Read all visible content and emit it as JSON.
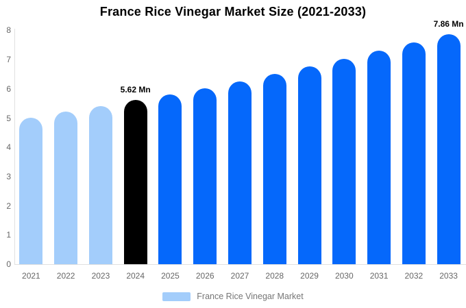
{
  "chart_data": {
    "type": "bar",
    "title": "France Rice Vinegar Market Size (2021-2033)",
    "categories": [
      "2021",
      "2022",
      "2023",
      "2024",
      "2025",
      "2026",
      "2027",
      "2028",
      "2029",
      "2030",
      "2031",
      "2032",
      "2033"
    ],
    "series": [
      {
        "name": "France Rice Vinegar Market",
        "values": [
          5.02,
          5.23,
          5.42,
          5.62,
          5.8,
          6.02,
          6.26,
          6.5,
          6.76,
          7.02,
          7.3,
          7.58,
          7.86
        ]
      }
    ],
    "unit_suffix": "Mn",
    "xlabel": "",
    "ylabel": "",
    "ylim": [
      0,
      8
    ],
    "yticks": [
      0,
      1,
      2,
      3,
      4,
      5,
      6,
      7,
      8
    ],
    "grid": false,
    "legend_position": "bottom",
    "data_labels": [
      {
        "category": "2024",
        "text": "5.62 Mn"
      },
      {
        "category": "2033",
        "text": "7.86 Mn"
      }
    ],
    "colors": {
      "historical": "#A3CDFB",
      "base_year": "#000000",
      "forecast": "#0568FB"
    },
    "bar_color_keys": [
      "historical",
      "historical",
      "historical",
      "base_year",
      "forecast",
      "forecast",
      "forecast",
      "forecast",
      "forecast",
      "forecast",
      "forecast",
      "forecast",
      "forecast"
    ]
  },
  "legend": {
    "label": "France Rice Vinegar Market",
    "swatch_color": "#A3CDFB"
  },
  "axis": {
    "line_color": "#e0e0e0",
    "tick_color": "#666666"
  }
}
